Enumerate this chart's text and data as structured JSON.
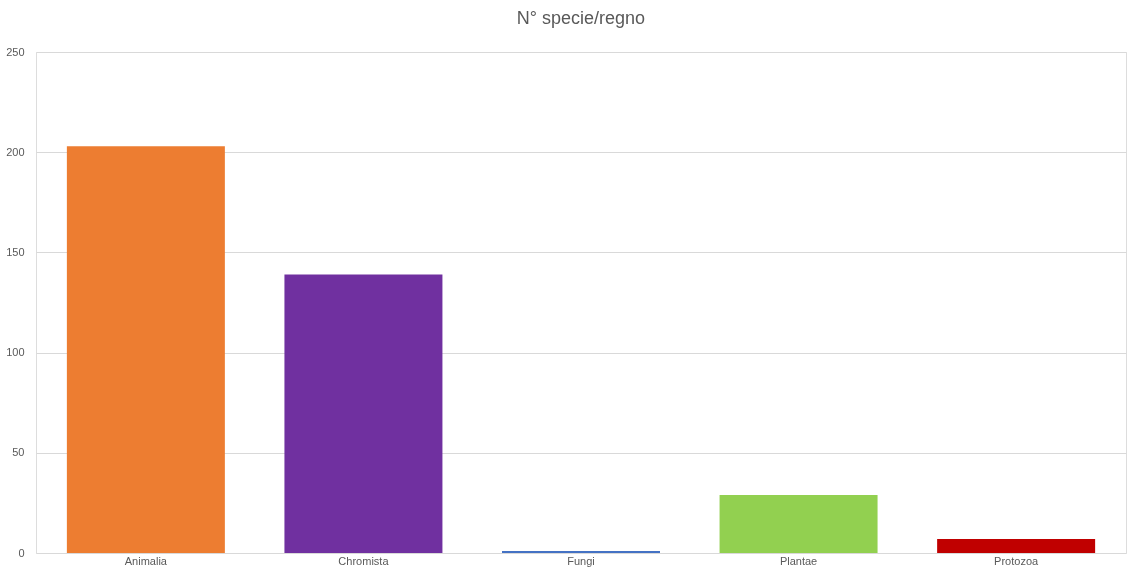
{
  "chart_data": {
    "type": "bar",
    "title": "N° specie/regno",
    "categories": [
      "Animalia",
      "Chromista",
      "Fungi",
      "Plantae",
      "Protozoa"
    ],
    "values": [
      203,
      139,
      1,
      29,
      7
    ],
    "colors": [
      "#ed7d31",
      "#7030a0",
      "#4472c4",
      "#92d050",
      "#c00000"
    ],
    "ylim": [
      0,
      250
    ],
    "yticks": [
      0,
      50,
      100,
      150,
      200,
      250
    ],
    "grid": "y",
    "legend": false
  }
}
